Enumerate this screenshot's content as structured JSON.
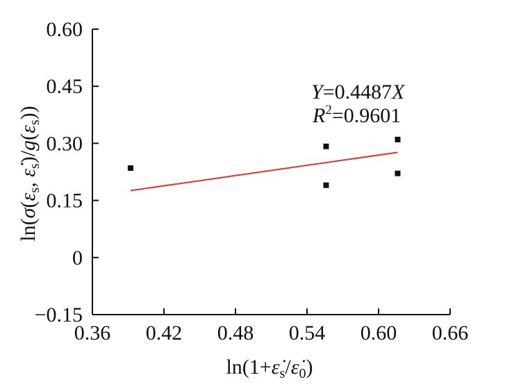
{
  "chart_data": {
    "type": "scatter",
    "title": "",
    "xlabel": "ln(1+ε̇s/ε̇0)",
    "ylabel": "ln(σ(εs, ε̇s)/g(εs))",
    "xlim": [
      0.36,
      0.66
    ],
    "ylim": [
      -0.15,
      0.6
    ],
    "x_ticks": [
      0.36,
      0.42,
      0.48,
      0.54,
      0.6,
      0.66
    ],
    "x_tick_labels": [
      "0.36",
      "0.42",
      "0.48",
      "0.54",
      "0.60",
      "0.66"
    ],
    "y_ticks": [
      -0.15,
      0,
      0.15,
      0.3,
      0.45,
      0.6
    ],
    "y_tick_labels": [
      "−0.15",
      "0",
      "0.15",
      "0.30",
      "0.45",
      "0.60"
    ],
    "grid": false,
    "points": [
      {
        "x": 0.392,
        "y": 0.235
      },
      {
        "x": 0.556,
        "y": 0.292
      },
      {
        "x": 0.556,
        "y": 0.19
      },
      {
        "x": 0.616,
        "y": 0.31
      },
      {
        "x": 0.616,
        "y": 0.221
      }
    ],
    "fit_line": {
      "slope": 0.4487,
      "x": [
        0.392,
        0.616
      ],
      "color": "#e0342a"
    },
    "marker_color": "#111111",
    "annotations": {
      "equation": "Y=0.4487X",
      "r2": "R2=0.9601"
    }
  }
}
